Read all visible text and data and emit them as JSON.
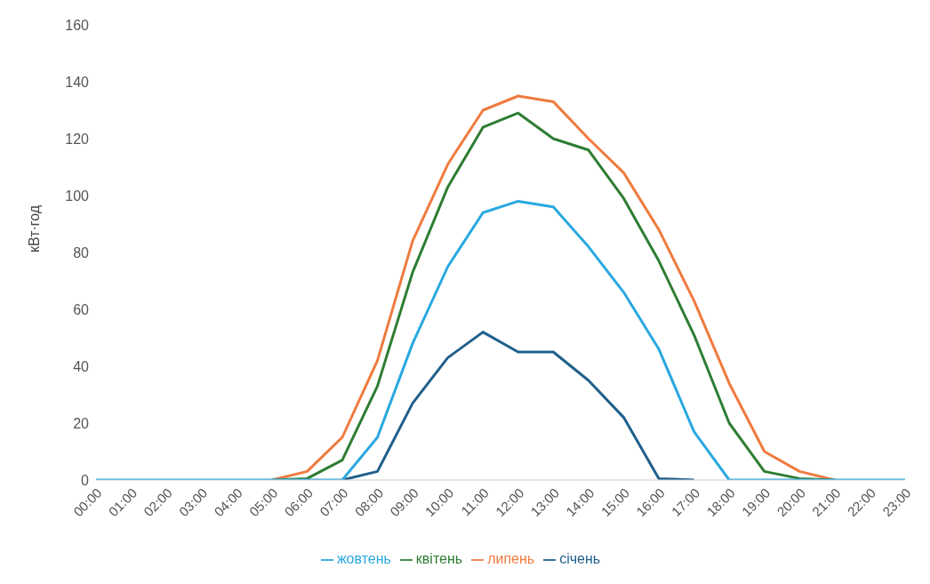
{
  "chart_data": {
    "type": "line",
    "ylabel": "кВт·год",
    "categories": [
      "00:00",
      "01:00",
      "02:00",
      "03:00",
      "04:00",
      "05:00",
      "06:00",
      "07:00",
      "08:00",
      "09:00",
      "10:00",
      "11:00",
      "12:00",
      "13:00",
      "14:00",
      "15:00",
      "16:00",
      "17:00",
      "18:00",
      "19:00",
      "20:00",
      "21:00",
      "22:00",
      "23:00"
    ],
    "ylim": [
      0,
      160
    ],
    "yticks": [
      0,
      20,
      40,
      60,
      80,
      100,
      120,
      140,
      160
    ],
    "grid": false,
    "legend": "bottom",
    "marker": "none",
    "series": [
      {
        "name": "січень",
        "color": "#1f5f8b",
        "values": [
          null,
          null,
          null,
          null,
          null,
          null,
          null,
          0,
          3,
          27,
          43,
          52,
          45,
          45,
          35,
          22,
          0.5,
          0,
          null,
          null,
          null,
          null,
          null,
          null
        ]
      },
      {
        "name": "липень",
        "color": "#f07b3f",
        "values": [
          null,
          null,
          null,
          null,
          null,
          0,
          3,
          15,
          42,
          84,
          111,
          130,
          135,
          133,
          120,
          108,
          88,
          63,
          34,
          10,
          3,
          0,
          null,
          null
        ]
      },
      {
        "name": "квітень",
        "color": "#2e7d32",
        "values": [
          null,
          null,
          null,
          null,
          null,
          0,
          0.5,
          7,
          33,
          73,
          103,
          124,
          129,
          120,
          116,
          99,
          77,
          51,
          20,
          3,
          0.5,
          0,
          null,
          null
        ]
      },
      {
        "name": "жовтень",
        "color": "#29a8e0",
        "values": [
          0,
          0,
          0,
          0,
          0,
          0,
          0,
          0,
          15,
          48,
          75,
          94,
          98,
          96,
          82,
          66,
          46,
          17,
          0,
          0,
          0,
          0,
          0,
          0
        ]
      }
    ]
  }
}
